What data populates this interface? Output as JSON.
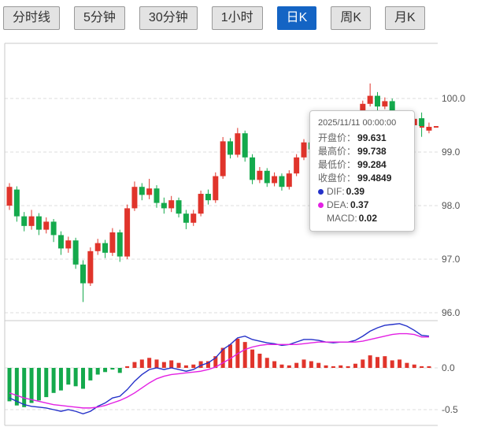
{
  "toolbar": {
    "active_bg": "#1464c4",
    "inactive_bg": "#e3e3e3",
    "buttons": [
      {
        "name": "timeframe-minute-line",
        "label": "分时线",
        "active": false
      },
      {
        "name": "timeframe-5min",
        "label": "5分钟",
        "active": false
      },
      {
        "name": "timeframe-30min",
        "label": "30分钟",
        "active": false
      },
      {
        "name": "timeframe-1hour",
        "label": "1小时",
        "active": false
      },
      {
        "name": "timeframe-daily-k",
        "label": "日K",
        "active": true
      },
      {
        "name": "timeframe-weekly-k",
        "label": "周K",
        "active": false
      },
      {
        "name": "timeframe-monthly-k",
        "label": "月K",
        "active": false
      }
    ]
  },
  "tooltip": {
    "datetime": "2025/11/11 00:00:00",
    "rows": [
      {
        "label": "开盘价：",
        "value": "99.631"
      },
      {
        "label": "最高价：",
        "value": "99.738"
      },
      {
        "label": "最低价：",
        "value": "99.284"
      },
      {
        "label": "收盘价：",
        "value": "99.4849"
      }
    ],
    "indicators": [
      {
        "label": "DIF:",
        "value": "0.39"
      },
      {
        "label": "DEA:",
        "value": "0.37"
      },
      {
        "label": "MACD:",
        "value": "0.02"
      }
    ]
  },
  "chart_data": {
    "type": "candlestick",
    "title": "",
    "hovered_candle_datetime": "2025/11/11 00:00:00",
    "legend": false,
    "grid": true,
    "up_color": "#e0342b",
    "down_color": "#14a94c",
    "dif_color": "#2431c9",
    "dea_color": "#e320e3",
    "y_axis": {
      "ticks": [
        100,
        99,
        98,
        97,
        96
      ],
      "labels": [
        "100.0",
        "99.0",
        "98.0",
        "97.0",
        "96.0"
      ],
      "range": [
        95.85,
        101.0
      ]
    },
    "macd_axis": {
      "ticks": [
        0,
        -0.5
      ],
      "labels": [
        "0.0",
        "-0.5"
      ],
      "range": [
        -0.75,
        0.57
      ]
    },
    "candles_ohlc": [
      [
        98.0,
        98.42,
        97.92,
        98.35
      ],
      [
        98.3,
        98.36,
        97.7,
        97.8
      ],
      [
        97.8,
        97.88,
        97.52,
        97.62
      ],
      [
        97.62,
        97.92,
        97.55,
        97.8
      ],
      [
        97.8,
        97.86,
        97.45,
        97.55
      ],
      [
        97.55,
        97.78,
        97.48,
        97.7
      ],
      [
        97.7,
        97.75,
        97.32,
        97.45
      ],
      [
        97.45,
        97.52,
        97.08,
        97.2
      ],
      [
        97.2,
        97.42,
        97.12,
        97.35
      ],
      [
        97.35,
        97.4,
        96.82,
        96.9
      ],
      [
        96.9,
        96.98,
        96.2,
        96.55
      ],
      [
        96.55,
        97.22,
        96.5,
        97.15
      ],
      [
        97.15,
        97.38,
        97.08,
        97.3
      ],
      [
        97.3,
        97.36,
        97.02,
        97.12
      ],
      [
        97.12,
        97.58,
        97.06,
        97.5
      ],
      [
        97.5,
        97.55,
        96.95,
        97.05
      ],
      [
        97.05,
        98.02,
        97.0,
        97.95
      ],
      [
        97.95,
        98.45,
        97.9,
        98.35
      ],
      [
        98.35,
        98.42,
        98.1,
        98.2
      ],
      [
        98.2,
        98.5,
        98.12,
        98.32
      ],
      [
        98.32,
        98.38,
        97.96,
        98.05
      ],
      [
        98.05,
        98.15,
        97.85,
        97.95
      ],
      [
        97.95,
        98.18,
        97.88,
        98.1
      ],
      [
        98.1,
        98.15,
        97.78,
        97.85
      ],
      [
        97.85,
        97.92,
        97.56,
        97.68
      ],
      [
        97.68,
        97.92,
        97.62,
        97.85
      ],
      [
        97.85,
        98.28,
        97.8,
        98.22
      ],
      [
        98.22,
        98.3,
        98.02,
        98.1
      ],
      [
        98.1,
        98.62,
        98.05,
        98.55
      ],
      [
        98.55,
        99.28,
        98.5,
        99.2
      ],
      [
        99.2,
        99.26,
        98.88,
        98.95
      ],
      [
        98.95,
        99.45,
        98.9,
        99.35
      ],
      [
        99.35,
        99.4,
        98.82,
        98.9
      ],
      [
        98.9,
        98.96,
        98.4,
        98.48
      ],
      [
        98.48,
        98.72,
        98.42,
        98.65
      ],
      [
        98.65,
        98.7,
        98.35,
        98.42
      ],
      [
        98.42,
        98.62,
        98.36,
        98.55
      ],
      [
        98.55,
        98.6,
        98.28,
        98.35
      ],
      [
        98.35,
        98.66,
        98.3,
        98.6
      ],
      [
        98.6,
        98.96,
        98.55,
        98.9
      ],
      [
        98.9,
        99.24,
        98.85,
        99.18
      ],
      [
        99.18,
        99.22,
        98.98,
        99.05
      ],
      [
        99.05,
        99.32,
        99.0,
        99.25
      ],
      [
        99.25,
        99.3,
        99.08,
        99.15
      ],
      [
        99.15,
        99.42,
        99.1,
        99.35
      ],
      [
        99.35,
        99.6,
        99.3,
        99.55
      ],
      [
        99.55,
        99.62,
        99.38,
        99.45
      ],
      [
        99.45,
        99.76,
        99.4,
        99.7
      ],
      [
        99.7,
        99.96,
        99.65,
        99.9
      ],
      [
        99.9,
        100.28,
        99.85,
        100.05
      ],
      [
        100.05,
        100.12,
        99.78,
        99.85
      ],
      [
        99.85,
        100.02,
        99.8,
        99.95
      ],
      [
        99.95,
        100.0,
        99.52,
        99.6
      ],
      [
        99.6,
        99.78,
        99.55,
        99.7
      ],
      [
        99.7,
        99.75,
        99.42,
        99.5
      ],
      [
        99.5,
        99.66,
        99.35,
        99.62
      ],
      [
        99.631,
        99.738,
        99.284,
        99.4849
      ],
      [
        99.4,
        99.55,
        99.35,
        99.47
      ]
    ],
    "macd": {
      "dif": [
        -0.36,
        -0.4,
        -0.44,
        -0.46,
        -0.47,
        -0.48,
        -0.5,
        -0.52,
        -0.5,
        -0.52,
        -0.55,
        -0.52,
        -0.46,
        -0.42,
        -0.36,
        -0.34,
        -0.26,
        -0.16,
        -0.08,
        -0.02,
        0.0,
        -0.02,
        0.0,
        -0.02,
        -0.04,
        -0.02,
        0.03,
        0.06,
        0.12,
        0.22,
        0.28,
        0.36,
        0.38,
        0.34,
        0.32,
        0.3,
        0.29,
        0.27,
        0.28,
        0.31,
        0.34,
        0.34,
        0.33,
        0.31,
        0.3,
        0.31,
        0.31,
        0.33,
        0.38,
        0.44,
        0.48,
        0.51,
        0.52,
        0.53,
        0.5,
        0.45,
        0.39,
        0.38
      ],
      "dea": [
        -0.3,
        -0.33,
        -0.36,
        -0.38,
        -0.4,
        -0.42,
        -0.44,
        -0.45,
        -0.46,
        -0.47,
        -0.48,
        -0.48,
        -0.47,
        -0.45,
        -0.42,
        -0.39,
        -0.35,
        -0.3,
        -0.24,
        -0.18,
        -0.13,
        -0.1,
        -0.08,
        -0.07,
        -0.06,
        -0.05,
        -0.04,
        -0.02,
        0.01,
        0.06,
        0.11,
        0.17,
        0.22,
        0.25,
        0.27,
        0.28,
        0.28,
        0.28,
        0.28,
        0.28,
        0.29,
        0.3,
        0.31,
        0.31,
        0.31,
        0.31,
        0.31,
        0.31,
        0.32,
        0.34,
        0.36,
        0.38,
        0.4,
        0.41,
        0.41,
        0.4,
        0.37,
        0.37
      ],
      "hist": [
        -0.4,
        -0.45,
        -0.47,
        -0.42,
        -0.39,
        -0.35,
        -0.3,
        -0.27,
        -0.2,
        -0.22,
        -0.25,
        -0.15,
        -0.08,
        -0.05,
        -0.02,
        -0.06,
        0.02,
        0.07,
        0.1,
        0.12,
        0.1,
        0.07,
        0.09,
        0.06,
        0.03,
        0.04,
        0.08,
        0.08,
        0.14,
        0.24,
        0.28,
        0.35,
        0.31,
        0.22,
        0.17,
        0.12,
        0.08,
        0.04,
        0.03,
        0.06,
        0.1,
        0.08,
        0.06,
        0.03,
        0.02,
        0.03,
        0.02,
        0.05,
        0.1,
        0.15,
        0.13,
        0.14,
        0.09,
        0.1,
        0.06,
        0.04,
        0.02,
        0.02
      ]
    }
  }
}
